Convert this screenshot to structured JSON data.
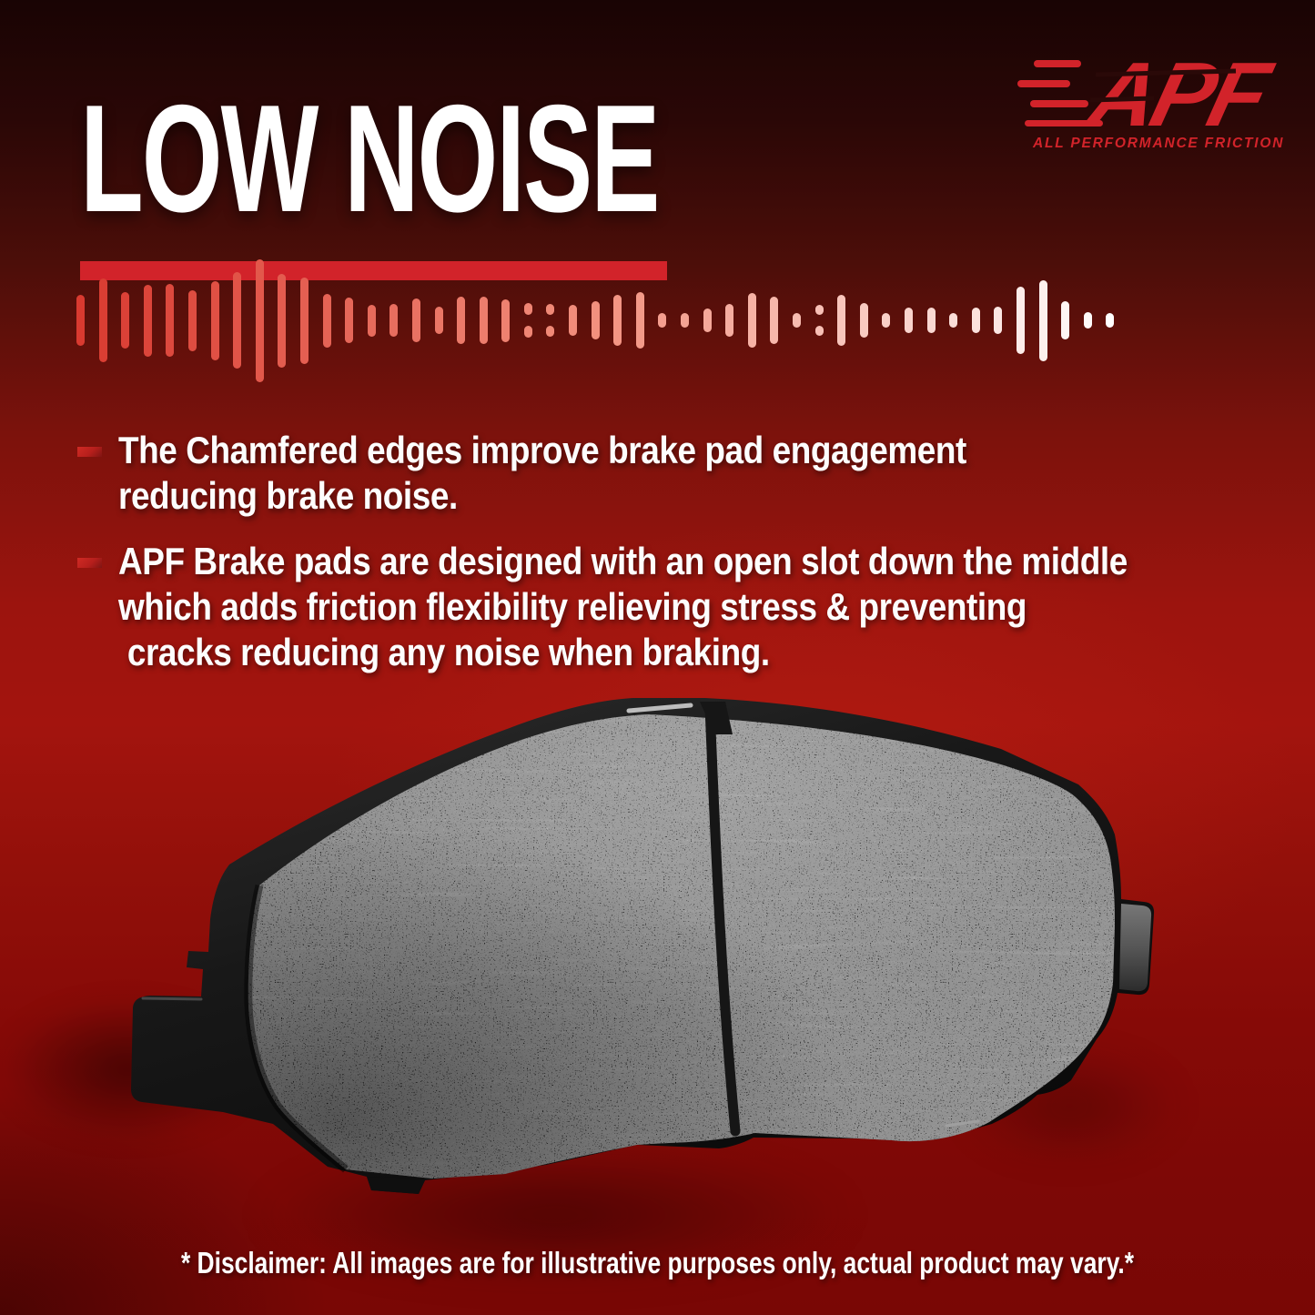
{
  "header": {
    "title": "LOW NOISE"
  },
  "logo": {
    "abbr": "APF",
    "tagline": "ALL PERFORMANCE FRICTION",
    "color": "#d2232a"
  },
  "soundwave": {
    "heights": [
      56,
      92,
      62,
      79,
      80,
      67,
      87,
      106,
      135,
      103,
      95,
      59,
      50,
      35,
      36,
      48,
      30,
      52,
      52,
      47,
      38,
      36,
      34,
      42,
      56,
      62,
      16,
      16,
      26,
      36,
      60,
      52,
      16,
      34,
      56,
      38,
      16,
      28,
      28,
      16,
      28,
      30,
      74,
      89,
      42,
      18,
      16
    ],
    "split_indices": [
      20,
      21,
      33
    ],
    "color_stops": [
      "#d93a30",
      "#f2907e",
      "#ffffff"
    ]
  },
  "bullets": [
    {
      "lines": [
        "The Chamfered edges improve brake pad engagement",
        "reducing brake noise."
      ]
    },
    {
      "lines": [
        "APF Brake pads are designed with an open slot down the middle",
        "which adds friction flexibility relieving stress & preventing",
        " cracks reducing any noise when braking."
      ]
    }
  ],
  "disclaimer": "* Disclaimer: All images are for illustrative purposes only, actual product may vary.*",
  "colors": {
    "accent_red": "#d2232a",
    "bullet_marker_red": "#c0211f",
    "background_top": "#190404",
    "background_mid": "#a3140e",
    "background_bottom": "#790705",
    "text_white": "#ffffff",
    "pad_gray": "#7d7d7d",
    "pad_backing_black": "#161616"
  }
}
